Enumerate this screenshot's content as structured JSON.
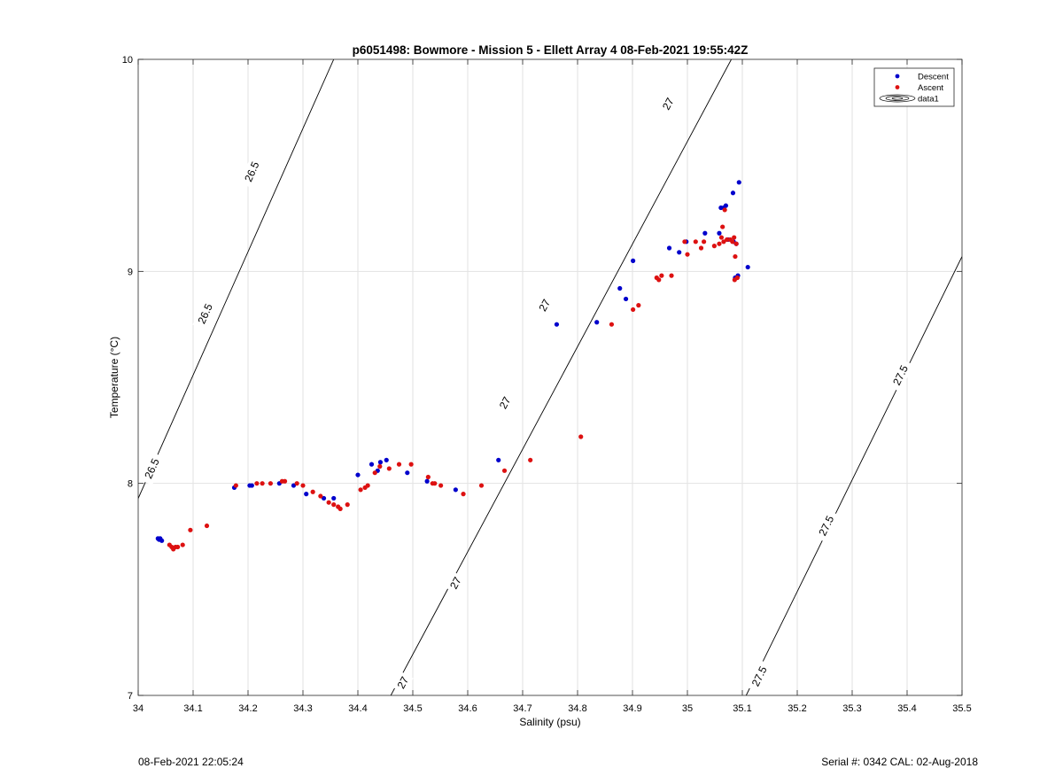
{
  "chart_data": {
    "type": "scatter",
    "title": "p6051498: Bowmore - Mission 5 - Ellett Array 4 08-Feb-2021 19:55:42Z",
    "xlabel": "Salinity (psu)",
    "ylabel": "Temperature (°C)",
    "xlim": [
      34,
      35.5
    ],
    "ylim": [
      7,
      10
    ],
    "xticks": [
      34,
      34.1,
      34.2,
      34.3,
      34.4,
      34.5,
      34.6,
      34.7,
      34.8,
      34.9,
      35,
      35.1,
      35.2,
      35.3,
      35.4,
      35.5
    ],
    "xtick_labels": [
      "34",
      "34.1",
      "34.2",
      "34.3",
      "34.4",
      "34.5",
      "34.6",
      "34.7",
      "34.8",
      "34.9",
      "35",
      "35.1",
      "35.2",
      "35.3",
      "35.4",
      "35.5"
    ],
    "yticks": [
      7,
      8,
      9,
      10
    ],
    "ytick_labels": [
      "7",
      "8",
      "9",
      "10"
    ],
    "grid": true,
    "legend_position": "top-right",
    "legend": [
      {
        "label": "Descent",
        "marker": "dot",
        "color": "#0000cc"
      },
      {
        "label": "Ascent",
        "marker": "dot",
        "color": "#dd1111"
      },
      {
        "label": "data1",
        "marker": "contour"
      }
    ],
    "series": [
      {
        "name": "Descent",
        "color": "#0000cc",
        "points": [
          [
            34.036,
            7.74
          ],
          [
            34.04,
            7.74
          ],
          [
            34.043,
            7.73
          ],
          [
            34.038,
            7.735
          ],
          [
            34.175,
            7.98
          ],
          [
            34.203,
            7.99
          ],
          [
            34.207,
            7.99
          ],
          [
            34.257,
            8.0
          ],
          [
            34.283,
            7.99
          ],
          [
            34.306,
            7.95
          ],
          [
            34.338,
            7.93
          ],
          [
            34.356,
            7.93
          ],
          [
            34.4,
            8.04
          ],
          [
            34.425,
            8.09
          ],
          [
            34.436,
            8.06
          ],
          [
            34.441,
            8.1
          ],
          [
            34.452,
            8.11
          ],
          [
            34.49,
            8.05
          ],
          [
            34.526,
            8.01
          ],
          [
            34.578,
            7.97
          ],
          [
            34.656,
            8.11
          ],
          [
            34.762,
            8.75
          ],
          [
            34.835,
            8.76
          ],
          [
            34.877,
            8.92
          ],
          [
            34.888,
            8.87
          ],
          [
            34.901,
            9.05
          ],
          [
            34.967,
            9.11
          ],
          [
            34.985,
            9.09
          ],
          [
            34.998,
            9.14
          ],
          [
            35.032,
            9.18
          ],
          [
            35.058,
            9.18
          ],
          [
            35.061,
            9.3
          ],
          [
            35.07,
            9.31
          ],
          [
            35.066,
            9.3
          ],
          [
            35.083,
            9.37
          ],
          [
            35.094,
            9.42
          ],
          [
            35.074,
            9.15
          ],
          [
            35.084,
            9.14
          ],
          [
            35.089,
            9.13
          ],
          [
            35.11,
            9.02
          ],
          [
            35.092,
            8.98
          ],
          [
            35.087,
            8.97
          ]
        ]
      },
      {
        "name": "Ascent",
        "color": "#dd1111",
        "points": [
          [
            34.057,
            7.71
          ],
          [
            34.061,
            7.7
          ],
          [
            34.064,
            7.69
          ],
          [
            34.068,
            7.7
          ],
          [
            34.072,
            7.7
          ],
          [
            34.081,
            7.71
          ],
          [
            34.095,
            7.78
          ],
          [
            34.125,
            7.8
          ],
          [
            34.178,
            7.99
          ],
          [
            34.216,
            8.0
          ],
          [
            34.226,
            8.0
          ],
          [
            34.241,
            8.0
          ],
          [
            34.262,
            8.01
          ],
          [
            34.267,
            8.01
          ],
          [
            34.289,
            8.0
          ],
          [
            34.3,
            7.99
          ],
          [
            34.318,
            7.96
          ],
          [
            34.332,
            7.94
          ],
          [
            34.347,
            7.91
          ],
          [
            34.356,
            7.9
          ],
          [
            34.364,
            7.89
          ],
          [
            34.368,
            7.88
          ],
          [
            34.381,
            7.9
          ],
          [
            34.405,
            7.97
          ],
          [
            34.413,
            7.98
          ],
          [
            34.418,
            7.99
          ],
          [
            34.431,
            8.05
          ],
          [
            34.44,
            8.08
          ],
          [
            34.457,
            8.07
          ],
          [
            34.475,
            8.09
          ],
          [
            34.497,
            8.09
          ],
          [
            34.528,
            8.03
          ],
          [
            34.536,
            8.0
          ],
          [
            34.54,
            8.0
          ],
          [
            34.551,
            7.99
          ],
          [
            34.592,
            7.95
          ],
          [
            34.625,
            7.99
          ],
          [
            34.667,
            8.06
          ],
          [
            34.714,
            8.11
          ],
          [
            34.806,
            8.22
          ],
          [
            34.862,
            8.75
          ],
          [
            34.901,
            8.82
          ],
          [
            34.911,
            8.84
          ],
          [
            34.944,
            8.97
          ],
          [
            34.948,
            8.96
          ],
          [
            34.953,
            8.98
          ],
          [
            34.971,
            8.98
          ],
          [
            34.995,
            9.14
          ],
          [
            35.0,
            9.08
          ],
          [
            35.015,
            9.14
          ],
          [
            35.025,
            9.11
          ],
          [
            35.03,
            9.14
          ],
          [
            35.049,
            9.12
          ],
          [
            35.058,
            9.13
          ],
          [
            35.062,
            9.16
          ],
          [
            35.064,
            9.21
          ],
          [
            35.068,
            9.29
          ],
          [
            35.072,
            9.15
          ],
          [
            35.078,
            9.15
          ],
          [
            35.082,
            9.14
          ],
          [
            35.085,
            9.16
          ],
          [
            35.087,
            9.07
          ],
          [
            35.089,
            9.13
          ],
          [
            35.086,
            8.96
          ],
          [
            35.091,
            8.97
          ],
          [
            35.066,
            9.14
          ]
        ]
      }
    ],
    "density_contours": [
      {
        "sigma": "26.5",
        "line": [
          [
            33.995,
            7.9
          ],
          [
            34.356,
            10.0
          ]
        ],
        "labels": [
          {
            "text": "26.5",
            "at": [
              34.025,
              8.07
            ]
          },
          {
            "text": "26.5",
            "at": [
              34.122,
              8.8
            ]
          },
          {
            "text": "26.5",
            "at": [
              34.207,
              9.47
            ]
          }
        ]
      },
      {
        "sigma": "27",
        "line": [
          [
            34.46,
            7.0
          ],
          [
            35.08,
            10.0
          ]
        ],
        "labels": [
          {
            "text": "27",
            "at": [
              34.482,
              7.06
            ]
          },
          {
            "text": "27",
            "at": [
              34.578,
              7.53
            ]
          },
          {
            "text": "27",
            "at": [
              34.668,
              8.38
            ]
          },
          {
            "text": "27",
            "at": [
              34.74,
              8.84
            ]
          },
          {
            "text": "27",
            "at": [
              34.965,
              9.79
            ]
          }
        ]
      },
      {
        "sigma": "27.5",
        "line": [
          [
            35.107,
            7.0
          ],
          [
            35.5,
            9.07
          ]
        ],
        "labels": [
          {
            "text": "27.5",
            "at": [
              35.131,
              7.09
            ]
          },
          {
            "text": "27.5",
            "at": [
              35.253,
              7.8
            ]
          },
          {
            "text": "27.5",
            "at": [
              35.388,
              8.51
            ]
          }
        ]
      }
    ]
  },
  "footer": {
    "left": "08-Feb-2021 22:05:24",
    "right": "Serial #: 0342  CAL: 02-Aug-2018"
  }
}
